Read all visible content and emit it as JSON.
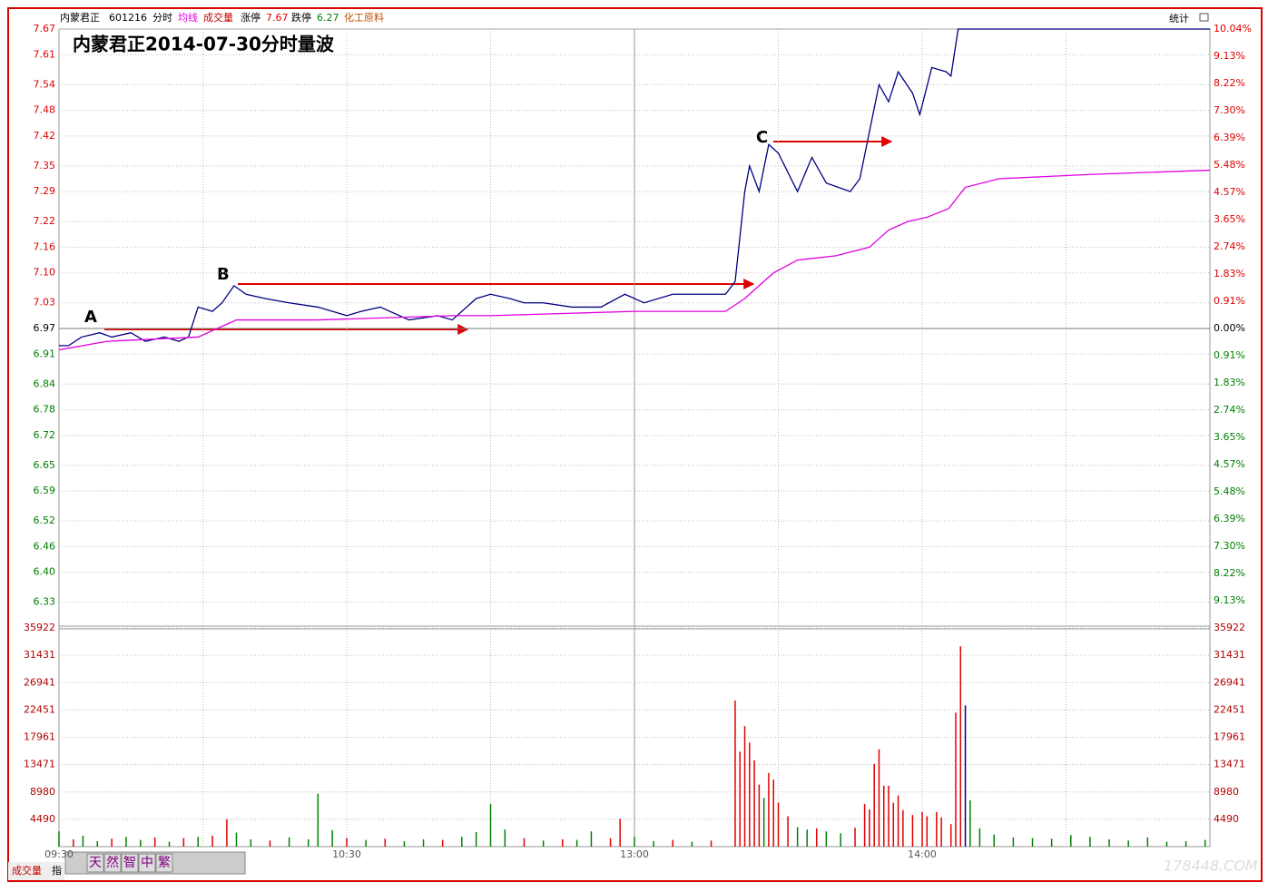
{
  "header": {
    "name": "内蒙君正",
    "code": "601216",
    "mode": "分时",
    "limit_up_label": "涨停",
    "limit_up": "7.67",
    "limit_down_label": "跌停",
    "limit_down": "6.27",
    "sector": "化工原料",
    "stats": "统计"
  },
  "annotation": {
    "title": "内蒙君正2014-07-30分时量波",
    "points": [
      "A",
      "B",
      "C"
    ]
  },
  "toolbar": {
    "left": "成交量",
    "index": "指",
    "buttons": [
      "天",
      "然",
      "智",
      "中",
      "繁"
    ]
  },
  "watermark": "178448.COM",
  "chart_data": [
    {
      "type": "line",
      "ylim": [
        6.27,
        7.67
      ],
      "y2lim": [
        -10.04,
        10.04
      ],
      "yticks": [
        7.67,
        7.61,
        7.54,
        7.48,
        7.42,
        7.35,
        7.29,
        7.22,
        7.16,
        {
          "value": 7.1,
          "label": "7.10"
        },
        7.03,
        6.97,
        6.91,
        6.84,
        6.78,
        6.72,
        6.65,
        6.59,
        6.52,
        6.46,
        {
          "value": 6.4,
          "label": "6.40"
        },
        6.33
      ],
      "y2ticks": [
        {
          "value": 10.04,
          "label": "10.04%"
        },
        {
          "value": 9.13,
          "label": "9.13%"
        },
        {
          "value": 8.22,
          "label": "8.22%"
        },
        {
          "value": 7.3,
          "label": "7.30%"
        },
        {
          "value": 6.39,
          "label": "6.39%"
        },
        {
          "value": 5.48,
          "label": "5.48%"
        },
        {
          "value": 4.57,
          "label": "4.57%"
        },
        {
          "value": 3.65,
          "label": "3.65%"
        },
        {
          "value": 2.74,
          "label": "2.74%"
        },
        {
          "value": 1.83,
          "label": "1.83%"
        },
        {
          "value": 0.91,
          "label": "0.91%"
        },
        {
          "value": 0,
          "label": "0.00%"
        },
        {
          "value": -0.91,
          "label": "0.91%"
        },
        {
          "value": -1.83,
          "label": "1.83%"
        },
        {
          "value": -2.74,
          "label": "2.74%"
        },
        {
          "value": -3.65,
          "label": "3.65%"
        },
        {
          "value": -4.57,
          "label": "4.57%"
        },
        {
          "value": -5.48,
          "label": "5.48%"
        },
        {
          "value": -6.39,
          "label": "6.39%"
        },
        {
          "value": -7.3,
          "label": "7.30%"
        },
        {
          "value": -8.22,
          "label": "8.22%"
        },
        {
          "value": -9.13,
          "label": "9.13%"
        }
      ],
      "series": [
        {
          "name": "分时",
          "color": "#000080",
          "x": [
            0,
            2,
            4.7,
            8.5,
            11,
            15,
            18,
            22,
            25,
            27,
            29,
            32,
            34,
            36.5,
            39,
            43,
            48,
            54,
            60,
            63,
            67,
            73,
            79,
            82,
            87,
            90,
            94,
            97,
            101,
            107,
            113,
            118,
            122,
            128,
            133,
            139,
            141,
            143,
            144,
            146,
            148,
            150,
            154,
            157,
            160,
            165,
            167,
            171,
            173,
            175,
            178,
            179.5,
            182,
            185,
            186,
            187.5,
            240
          ],
          "values": [
            6.93,
            6.93,
            6.95,
            6.96,
            6.95,
            6.96,
            6.94,
            6.95,
            6.94,
            6.95,
            7.02,
            7.01,
            7.03,
            7.07,
            7.05,
            7.04,
            7.03,
            7.02,
            7.0,
            7.01,
            7.02,
            6.99,
            7.0,
            6.99,
            7.04,
            7.05,
            7.04,
            7.03,
            7.03,
            7.02,
            7.02,
            7.05,
            7.03,
            7.05,
            7.05,
            7.05,
            7.08,
            7.29,
            7.35,
            7.29,
            7.4,
            7.38,
            7.29,
            7.37,
            7.31,
            7.29,
            7.32,
            7.54,
            7.5,
            7.57,
            7.52,
            7.47,
            7.58,
            7.57,
            7.56,
            7.67,
            7.67
          ]
        },
        {
          "name": "均线",
          "color": "#e000e0",
          "x": [
            0,
            10,
            29,
            37,
            54,
            82,
            90,
            120,
            139,
            143,
            149,
            154,
            162,
            169,
            173,
            177,
            181,
            185.5,
            189,
            196,
            215,
            240
          ],
          "values": [
            6.92,
            6.94,
            6.95,
            6.99,
            6.99,
            7.0,
            7.0,
            7.01,
            7.01,
            7.04,
            7.1,
            7.13,
            7.14,
            7.16,
            7.2,
            7.22,
            7.23,
            7.25,
            7.3,
            7.32,
            7.33,
            7.34
          ]
        }
      ]
    },
    {
      "type": "bar",
      "name": "成交量",
      "xlim": [
        0,
        240
      ],
      "ylim": [
        0,
        35922
      ],
      "xticks": [
        {
          "value": 0,
          "label": "09:30"
        },
        {
          "value": 60,
          "label": "10:30"
        },
        {
          "value": 120,
          "label": "13:00"
        },
        {
          "value": 180,
          "label": "14:00"
        }
      ],
      "yticks": [
        35922,
        31431,
        26941,
        22451,
        17961,
        13471,
        8980,
        4490
      ],
      "x": [
        0,
        3,
        5,
        8,
        11,
        14,
        17,
        20,
        23,
        26,
        29,
        32,
        35,
        37,
        40,
        44,
        48,
        52,
        54,
        57,
        60,
        64,
        68,
        72,
        76,
        80,
        84,
        87,
        90,
        93,
        97,
        101,
        105,
        108,
        111,
        115,
        117,
        120,
        124,
        128,
        132,
        136,
        141,
        142,
        143,
        144,
        145,
        146,
        147,
        148,
        149,
        150,
        152,
        154,
        156,
        158,
        160,
        163,
        166,
        168,
        169,
        170,
        171,
        172,
        173,
        174,
        175,
        176,
        178,
        180,
        181,
        183,
        184,
        186,
        187,
        188,
        189,
        190,
        192,
        195,
        199,
        203,
        207,
        211,
        215,
        219,
        223,
        227,
        231,
        235,
        239
      ],
      "values": [
        2500,
        1200,
        1800,
        900,
        1300,
        1600,
        1100,
        1500,
        800,
        1400,
        1600,
        1800,
        4500,
        2300,
        1200,
        1000,
        1500,
        1200,
        8700,
        2700,
        1400,
        1100,
        1300,
        900,
        1200,
        1100,
        1600,
        2400,
        7000,
        2800,
        1400,
        1000,
        1200,
        1100,
        2500,
        1400,
        4600,
        1600,
        900,
        1100,
        800,
        1000,
        24000,
        15600,
        19800,
        17100,
        14200,
        10200,
        8000,
        12100,
        11000,
        7200,
        5000,
        3200,
        2800,
        3000,
        2500,
        2200,
        3100,
        7000,
        6100,
        13600,
        16000,
        10000,
        10000,
        7200,
        8400,
        6000,
        5200,
        5700,
        5000,
        5700,
        4800,
        3700,
        22000,
        32900,
        23200,
        7600,
        3000,
        2000,
        1500,
        1400,
        1300,
        1900,
        1600,
        1200,
        1000,
        1500,
        800,
        900,
        1100
      ],
      "colors": [
        "#008000",
        "#e00000",
        "#008000",
        "#008000",
        "#e00000",
        "#008000",
        "#008000",
        "#e00000",
        "#008000",
        "#e00000",
        "#008000",
        "#e00000",
        "#e00000",
        "#008000",
        "#008000",
        "#e00000",
        "#008000",
        "#008000",
        "#008000",
        "#008000",
        "#e00000",
        "#008000",
        "#e00000",
        "#008000",
        "#008000",
        "#e00000",
        "#008000",
        "#008000",
        "#008000",
        "#008000",
        "#e00000",
        "#008000",
        "#e00000",
        "#008000",
        "#008000",
        "#e00000",
        "#e00000",
        "#008000",
        "#008000",
        "#e00000",
        "#008000",
        "#e00000",
        "#e00000",
        "#e00000",
        "#e00000",
        "#e00000",
        "#e00000",
        "#e00000",
        "#008000",
        "#e00000",
        "#e00000",
        "#e00000",
        "#e00000",
        "#008000",
        "#008000",
        "#e00000",
        "#008000",
        "#008000",
        "#e00000",
        "#e00000",
        "#e00000",
        "#e00000",
        "#e00000",
        "#e00000",
        "#e00000",
        "#e00000",
        "#e00000",
        "#e00000",
        "#e00000",
        "#e00000",
        "#e00000",
        "#e00000",
        "#e00000",
        "#e00000",
        "#e00000",
        "#e00000",
        "#000080",
        "#008000",
        "#008000",
        "#008000",
        "#008000",
        "#008000",
        "#008000",
        "#008000",
        "#008000",
        "#008000",
        "#008000",
        "#008000",
        "#008000",
        "#008000",
        "#008000"
      ]
    }
  ]
}
